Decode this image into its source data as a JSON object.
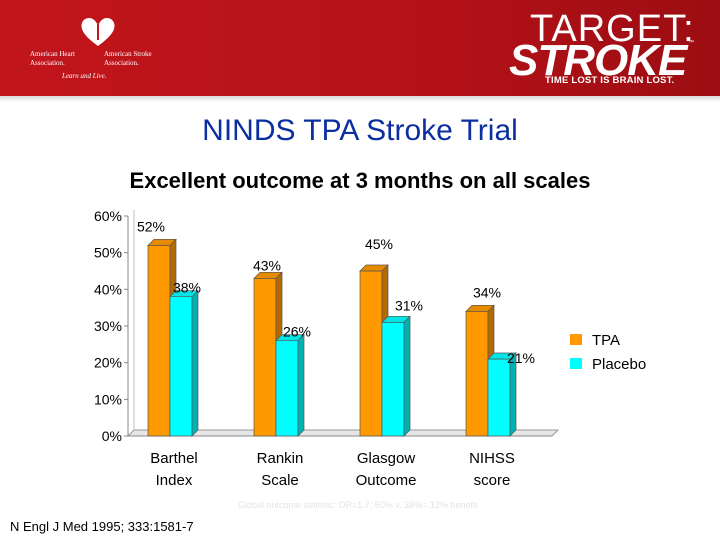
{
  "banner": {
    "org_left": "American Heart Association.",
    "org_right": "American Stroke Association.",
    "org_tagline": "Learn and Live.",
    "campaign_line1": "TARGET:",
    "campaign_line2": "STROKE",
    "campaign_tm": "™",
    "campaign_tagline": "TIME LOST IS BRAIN LOST.",
    "colors": {
      "banner": "#b71219",
      "heart": "#ffffff"
    }
  },
  "slide": {
    "title": "NINDS TPA Stroke Trial",
    "subtitle": "Excellent outcome at 3 months on all scales",
    "footnote": "Global outcome statistic: OR=1.7; 50% v. 38%= 12% benefit",
    "citation": "N Engl J Med 1995; 333:1581-7"
  },
  "chart_data": {
    "type": "bar",
    "categories": [
      "Barthel Index",
      "Rankin Scale",
      "Glasgow Outcome",
      "NIHSS score"
    ],
    "category_lines": [
      [
        "Barthel",
        "Index"
      ],
      [
        "Rankin",
        "Scale"
      ],
      [
        "Glasgow",
        "Outcome"
      ],
      [
        "NIHSS",
        "score"
      ]
    ],
    "series": [
      {
        "name": "TPA",
        "values": [
          52,
          43,
          45,
          34
        ],
        "labels": [
          "52%",
          "43%",
          "45%",
          "34%"
        ],
        "color": "#ff9900"
      },
      {
        "name": "Placebo",
        "values": [
          38,
          26,
          31,
          21
        ],
        "labels": [
          "38%",
          "26%",
          "31%",
          "21%"
        ],
        "color": "#00ffff"
      }
    ],
    "ylim": [
      0,
      60
    ],
    "yticks": [
      0,
      10,
      20,
      30,
      40,
      50,
      60
    ],
    "ytick_labels": [
      "0%",
      "10%",
      "20%",
      "30%",
      "40%",
      "50%",
      "60%"
    ],
    "grid": false,
    "style": "3d",
    "legend_position": "right",
    "title": "",
    "xlabel": "",
    "ylabel": ""
  }
}
